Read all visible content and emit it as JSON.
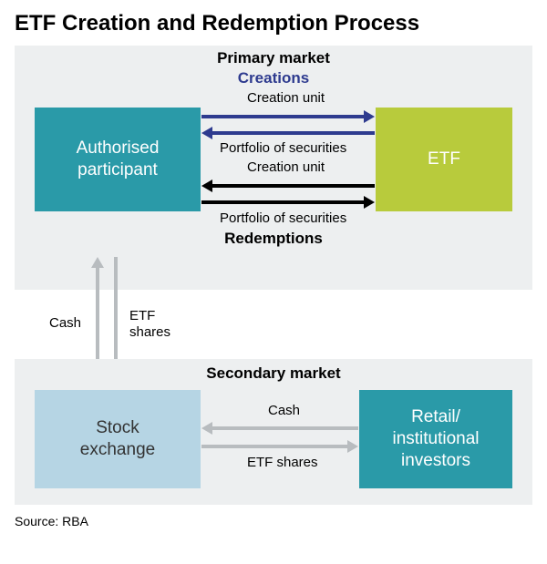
{
  "title": "ETF Creation and Redemption Process",
  "colors": {
    "panel_bg": "#edeff0",
    "box_teal": "#2a9aa8",
    "box_lime": "#b8cb3c",
    "box_lightblue": "#b6d5e4",
    "box_teal2": "#2a9aa8",
    "arrow_blue": "#2e3b8f",
    "arrow_black": "#000000",
    "arrow_gray": "#b8bcbf",
    "text_blue": "#2e3b8f",
    "stock_text": "#333333"
  },
  "primary": {
    "heading": "Primary market",
    "creations_label": "Creations",
    "redemptions_label": "Redemptions",
    "box_left": "Authorised participant",
    "box_right": "ETF",
    "arrows": {
      "creation_unit": "Creation unit",
      "portfolio": "Portfolio of securities"
    }
  },
  "vertical": {
    "left_label": "Cash",
    "right_label": "ETF shares"
  },
  "secondary": {
    "heading": "Secondary market",
    "box_left": "Stock exchange",
    "box_right": "Retail/ institutional investors",
    "arrows": {
      "top_label": "Cash",
      "bottom_label": "ETF shares"
    }
  },
  "source": "Source: RBA",
  "geom": {
    "arrow_head_w": 12,
    "arrow_head_h": 14,
    "arrow_shaft_h": 4,
    "arrow_thin_shaft": 3
  }
}
